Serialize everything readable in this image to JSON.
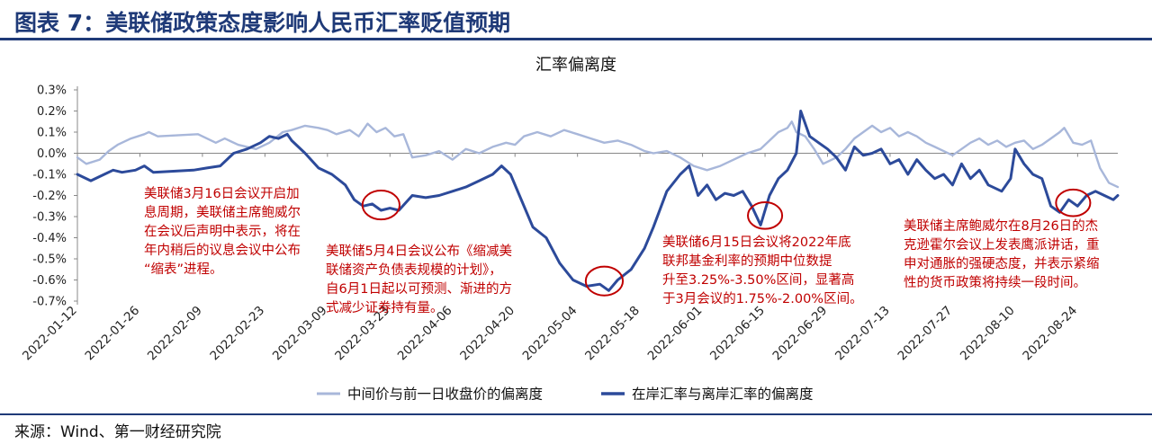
{
  "figure": {
    "title": "图表 7：美联储政策态度影响人民币汇率贬值预期",
    "source": "来源：Wind、第一财经研究院"
  },
  "colors": {
    "header": "#1f3a78",
    "series_light": "#a8b7da",
    "series_dark": "#2c4a9a",
    "annotation": "#c00000",
    "axis": "#888888"
  },
  "chart_data": {
    "type": "line",
    "title": "汇率偏离度",
    "xlabel": "",
    "ylabel": "",
    "x_start": "2022-01-12",
    "x_ticks": [
      "2022-01-12",
      "2022-01-26",
      "2022-02-09",
      "2022-02-23",
      "2022-03-09",
      "2022-03-23",
      "2022-04-06",
      "2022-04-20",
      "2022-05-04",
      "2022-05-18",
      "2022-06-01",
      "2022-06-15",
      "2022-06-29",
      "2022-07-13",
      "2022-07-27",
      "2022-08-10",
      "2022-08-24"
    ],
    "x_range": [
      "2022-01-12",
      "2022-09-02"
    ],
    "y_ticks": [
      0.3,
      0.2,
      0.1,
      0.0,
      -0.1,
      -0.2,
      -0.3,
      -0.4,
      -0.5,
      -0.6,
      -0.7
    ],
    "y_tick_labels": [
      "0.3%",
      "0.2%",
      "0.1%",
      "0.0%",
      "-0.1%",
      "-0.2%",
      "-0.3%",
      "-0.4%",
      "-0.5%",
      "-0.6%",
      "-0.7%"
    ],
    "ylim": [
      -0.7,
      0.3
    ],
    "grid": false,
    "legend": "bottom",
    "series": [
      {
        "name": "中间价与前一日收盘价的偏离度",
        "points": [
          [
            "2022-01-12",
            -0.02
          ],
          [
            "2022-01-14",
            -0.05
          ],
          [
            "2022-01-17",
            -0.03
          ],
          [
            "2022-01-19",
            0.01
          ],
          [
            "2022-01-21",
            0.04
          ],
          [
            "2022-01-24",
            0.07
          ],
          [
            "2022-01-27",
            0.09
          ],
          [
            "2022-01-28",
            0.1
          ],
          [
            "2022-01-30",
            0.08
          ],
          [
            "2022-02-08",
            0.09
          ],
          [
            "2022-02-10",
            0.07
          ],
          [
            "2022-02-12",
            0.05
          ],
          [
            "2022-02-14",
            0.07
          ],
          [
            "2022-02-17",
            0.04
          ],
          [
            "2022-02-21",
            0.02
          ],
          [
            "2022-02-24",
            0.05
          ],
          [
            "2022-02-27",
            0.1
          ],
          [
            "2022-03-01",
            0.11
          ],
          [
            "2022-03-04",
            0.13
          ],
          [
            "2022-03-07",
            0.12
          ],
          [
            "2022-03-09",
            0.11
          ],
          [
            "2022-03-11",
            0.09
          ],
          [
            "2022-03-14",
            0.11
          ],
          [
            "2022-03-16",
            0.08
          ],
          [
            "2022-03-18",
            0.14
          ],
          [
            "2022-03-20",
            0.1
          ],
          [
            "2022-03-22",
            0.12
          ],
          [
            "2022-03-24",
            0.08
          ],
          [
            "2022-03-26",
            0.09
          ],
          [
            "2022-03-28",
            -0.02
          ],
          [
            "2022-03-31",
            -0.01
          ],
          [
            "2022-04-03",
            0.01
          ],
          [
            "2022-04-06",
            -0.03
          ],
          [
            "2022-04-09",
            0.02
          ],
          [
            "2022-04-12",
            0.0
          ],
          [
            "2022-04-15",
            0.03
          ],
          [
            "2022-04-18",
            0.05
          ],
          [
            "2022-04-20",
            0.04
          ],
          [
            "2022-04-22",
            0.08
          ],
          [
            "2022-04-25",
            0.1
          ],
          [
            "2022-04-28",
            0.08
          ],
          [
            "2022-05-01",
            0.11
          ],
          [
            "2022-05-04",
            0.09
          ],
          [
            "2022-05-07",
            0.07
          ],
          [
            "2022-05-10",
            0.05
          ],
          [
            "2022-05-13",
            0.06
          ],
          [
            "2022-05-16",
            0.04
          ],
          [
            "2022-05-19",
            0.01
          ],
          [
            "2022-05-21",
            0.0
          ],
          [
            "2022-05-24",
            0.01
          ],
          [
            "2022-05-27",
            -0.02
          ],
          [
            "2022-05-30",
            -0.06
          ],
          [
            "2022-06-02",
            -0.08
          ],
          [
            "2022-06-05",
            -0.06
          ],
          [
            "2022-06-08",
            -0.03
          ],
          [
            "2022-06-11",
            0.0
          ],
          [
            "2022-06-14",
            0.02
          ],
          [
            "2022-06-16",
            0.06
          ],
          [
            "2022-06-18",
            0.1
          ],
          [
            "2022-06-20",
            0.12
          ],
          [
            "2022-06-21",
            0.15
          ],
          [
            "2022-06-22",
            0.1
          ],
          [
            "2022-06-24",
            0.08
          ],
          [
            "2022-06-26",
            0.02
          ],
          [
            "2022-06-28",
            -0.05
          ],
          [
            "2022-07-01",
            -0.02
          ],
          [
            "2022-07-03",
            0.02
          ],
          [
            "2022-07-05",
            0.07
          ],
          [
            "2022-07-07",
            0.1
          ],
          [
            "2022-07-09",
            0.13
          ],
          [
            "2022-07-11",
            0.1
          ],
          [
            "2022-07-13",
            0.12
          ],
          [
            "2022-07-15",
            0.08
          ],
          [
            "2022-07-17",
            0.1
          ],
          [
            "2022-07-19",
            0.08
          ],
          [
            "2022-07-21",
            0.05
          ],
          [
            "2022-07-23",
            0.03
          ],
          [
            "2022-07-25",
            0.01
          ],
          [
            "2022-07-27",
            -0.01
          ],
          [
            "2022-07-29",
            0.02
          ],
          [
            "2022-07-31",
            0.05
          ],
          [
            "2022-08-02",
            0.07
          ],
          [
            "2022-08-04",
            0.04
          ],
          [
            "2022-08-06",
            0.06
          ],
          [
            "2022-08-08",
            0.03
          ],
          [
            "2022-08-10",
            0.05
          ],
          [
            "2022-08-12",
            0.06
          ],
          [
            "2022-08-14",
            0.02
          ],
          [
            "2022-08-16",
            0.04
          ],
          [
            "2022-08-18",
            0.07
          ],
          [
            "2022-08-20",
            0.1
          ],
          [
            "2022-08-21",
            0.12
          ],
          [
            "2022-08-23",
            0.05
          ],
          [
            "2022-08-25",
            0.04
          ],
          [
            "2022-08-27",
            0.06
          ],
          [
            "2022-08-29",
            -0.07
          ],
          [
            "2022-08-31",
            -0.14
          ],
          [
            "2022-09-02",
            -0.16
          ]
        ]
      },
      {
        "name": "在岸汇率与离岸汇率的偏离度",
        "points": [
          [
            "2022-01-12",
            -0.1
          ],
          [
            "2022-01-15",
            -0.13
          ],
          [
            "2022-01-18",
            -0.1
          ],
          [
            "2022-01-20",
            -0.08
          ],
          [
            "2022-01-22",
            -0.09
          ],
          [
            "2022-01-25",
            -0.08
          ],
          [
            "2022-01-27",
            -0.06
          ],
          [
            "2022-01-29",
            -0.09
          ],
          [
            "2022-02-07",
            -0.08
          ],
          [
            "2022-02-10",
            -0.07
          ],
          [
            "2022-02-13",
            -0.06
          ],
          [
            "2022-02-16",
            0.0
          ],
          [
            "2022-02-19",
            0.02
          ],
          [
            "2022-02-22",
            0.05
          ],
          [
            "2022-02-24",
            0.08
          ],
          [
            "2022-02-26",
            0.07
          ],
          [
            "2022-02-28",
            0.09
          ],
          [
            "2022-03-01",
            0.06
          ],
          [
            "2022-03-04",
            0.0
          ],
          [
            "2022-03-07",
            -0.07
          ],
          [
            "2022-03-10",
            -0.1
          ],
          [
            "2022-03-13",
            -0.15
          ],
          [
            "2022-03-15",
            -0.22
          ],
          [
            "2022-03-17",
            -0.25
          ],
          [
            "2022-03-19",
            -0.24
          ],
          [
            "2022-03-21",
            -0.27
          ],
          [
            "2022-03-23",
            -0.26
          ],
          [
            "2022-03-25",
            -0.27
          ],
          [
            "2022-03-28",
            -0.2
          ],
          [
            "2022-03-31",
            -0.21
          ],
          [
            "2022-04-03",
            -0.2
          ],
          [
            "2022-04-06",
            -0.18
          ],
          [
            "2022-04-09",
            -0.16
          ],
          [
            "2022-04-12",
            -0.13
          ],
          [
            "2022-04-15",
            -0.1
          ],
          [
            "2022-04-17",
            -0.06
          ],
          [
            "2022-04-19",
            -0.1
          ],
          [
            "2022-04-21",
            -0.2
          ],
          [
            "2022-04-24",
            -0.35
          ],
          [
            "2022-04-27",
            -0.4
          ],
          [
            "2022-04-30",
            -0.52
          ],
          [
            "2022-05-03",
            -0.6
          ],
          [
            "2022-05-06",
            -0.63
          ],
          [
            "2022-05-09",
            -0.62
          ],
          [
            "2022-05-11",
            -0.65
          ],
          [
            "2022-05-13",
            -0.6
          ],
          [
            "2022-05-16",
            -0.55
          ],
          [
            "2022-05-19",
            -0.45
          ],
          [
            "2022-05-21",
            -0.35
          ],
          [
            "2022-05-24",
            -0.18
          ],
          [
            "2022-05-27",
            -0.1
          ],
          [
            "2022-05-29",
            -0.06
          ],
          [
            "2022-05-31",
            -0.2
          ],
          [
            "2022-06-02",
            -0.15
          ],
          [
            "2022-06-04",
            -0.22
          ],
          [
            "2022-06-06",
            -0.19
          ],
          [
            "2022-06-08",
            -0.2
          ],
          [
            "2022-06-10",
            -0.18
          ],
          [
            "2022-06-12",
            -0.25
          ],
          [
            "2022-06-14",
            -0.34
          ],
          [
            "2022-06-16",
            -0.2
          ],
          [
            "2022-06-18",
            -0.12
          ],
          [
            "2022-06-20",
            -0.08
          ],
          [
            "2022-06-22",
            0.0
          ],
          [
            "2022-06-23",
            0.2
          ],
          [
            "2022-06-25",
            0.08
          ],
          [
            "2022-06-27",
            0.05
          ],
          [
            "2022-06-29",
            0.02
          ],
          [
            "2022-07-01",
            -0.02
          ],
          [
            "2022-07-03",
            -0.08
          ],
          [
            "2022-07-05",
            0.03
          ],
          [
            "2022-07-07",
            -0.01
          ],
          [
            "2022-07-09",
            0.0
          ],
          [
            "2022-07-11",
            0.02
          ],
          [
            "2022-07-13",
            -0.05
          ],
          [
            "2022-07-15",
            -0.03
          ],
          [
            "2022-07-17",
            -0.1
          ],
          [
            "2022-07-19",
            -0.03
          ],
          [
            "2022-07-21",
            -0.08
          ],
          [
            "2022-07-23",
            -0.12
          ],
          [
            "2022-07-25",
            -0.1
          ],
          [
            "2022-07-27",
            -0.15
          ],
          [
            "2022-07-29",
            -0.05
          ],
          [
            "2022-07-31",
            -0.12
          ],
          [
            "2022-08-02",
            -0.08
          ],
          [
            "2022-08-04",
            -0.15
          ],
          [
            "2022-08-07",
            -0.18
          ],
          [
            "2022-08-09",
            -0.12
          ],
          [
            "2022-08-10",
            0.02
          ],
          [
            "2022-08-12",
            -0.05
          ],
          [
            "2022-08-14",
            -0.1
          ],
          [
            "2022-08-16",
            -0.12
          ],
          [
            "2022-08-18",
            -0.25
          ],
          [
            "2022-08-20",
            -0.28
          ],
          [
            "2022-08-22",
            -0.22
          ],
          [
            "2022-08-24",
            -0.25
          ],
          [
            "2022-08-26",
            -0.2
          ],
          [
            "2022-08-28",
            -0.18
          ],
          [
            "2022-08-30",
            -0.2
          ],
          [
            "2022-09-01",
            -0.22
          ],
          [
            "2022-09-02",
            -0.2
          ]
        ]
      }
    ],
    "annotations": [
      {
        "text": "美联储3月16日会议开启加\n息周期，美联储主席鲍威尔\n在会议后声明中表示，将在\n年内稍后的议息会议中公布\n“缩表”进程。",
        "circle_center": [
          "2022-03-21",
          -0.245
        ],
        "circle_radius_value": 0.065
      },
      {
        "text": "美联储5月4日会议公布《缩减美\n联储资产负债表规模的计划》，\n自6月1日起以可预测、渐进的方\n式减少证券持有量。",
        "circle_center": [
          "2022-05-10",
          -0.605
        ],
        "circle_radius_value": 0.065
      },
      {
        "text": "美联储6月15日会议将2022年底\n联邦基金利率的预期中位数提\n升至3.25%-3.50%区间，显著高\n于3月会议的1.75%-2.00%区间。",
        "circle_center": [
          "2022-06-15",
          -0.295
        ],
        "circle_radius_value": 0.06
      },
      {
        "text": "美联储主席鲍威尔在8月26日的杰\n克逊霍尔会议上发表鹰派讲话，重\n申对通胀的强硬态度，并表示紧缩\n性的货币政策将持续一段时间。",
        "circle_center": [
          "2022-08-23",
          -0.235
        ],
        "circle_radius_value": 0.06
      }
    ]
  }
}
